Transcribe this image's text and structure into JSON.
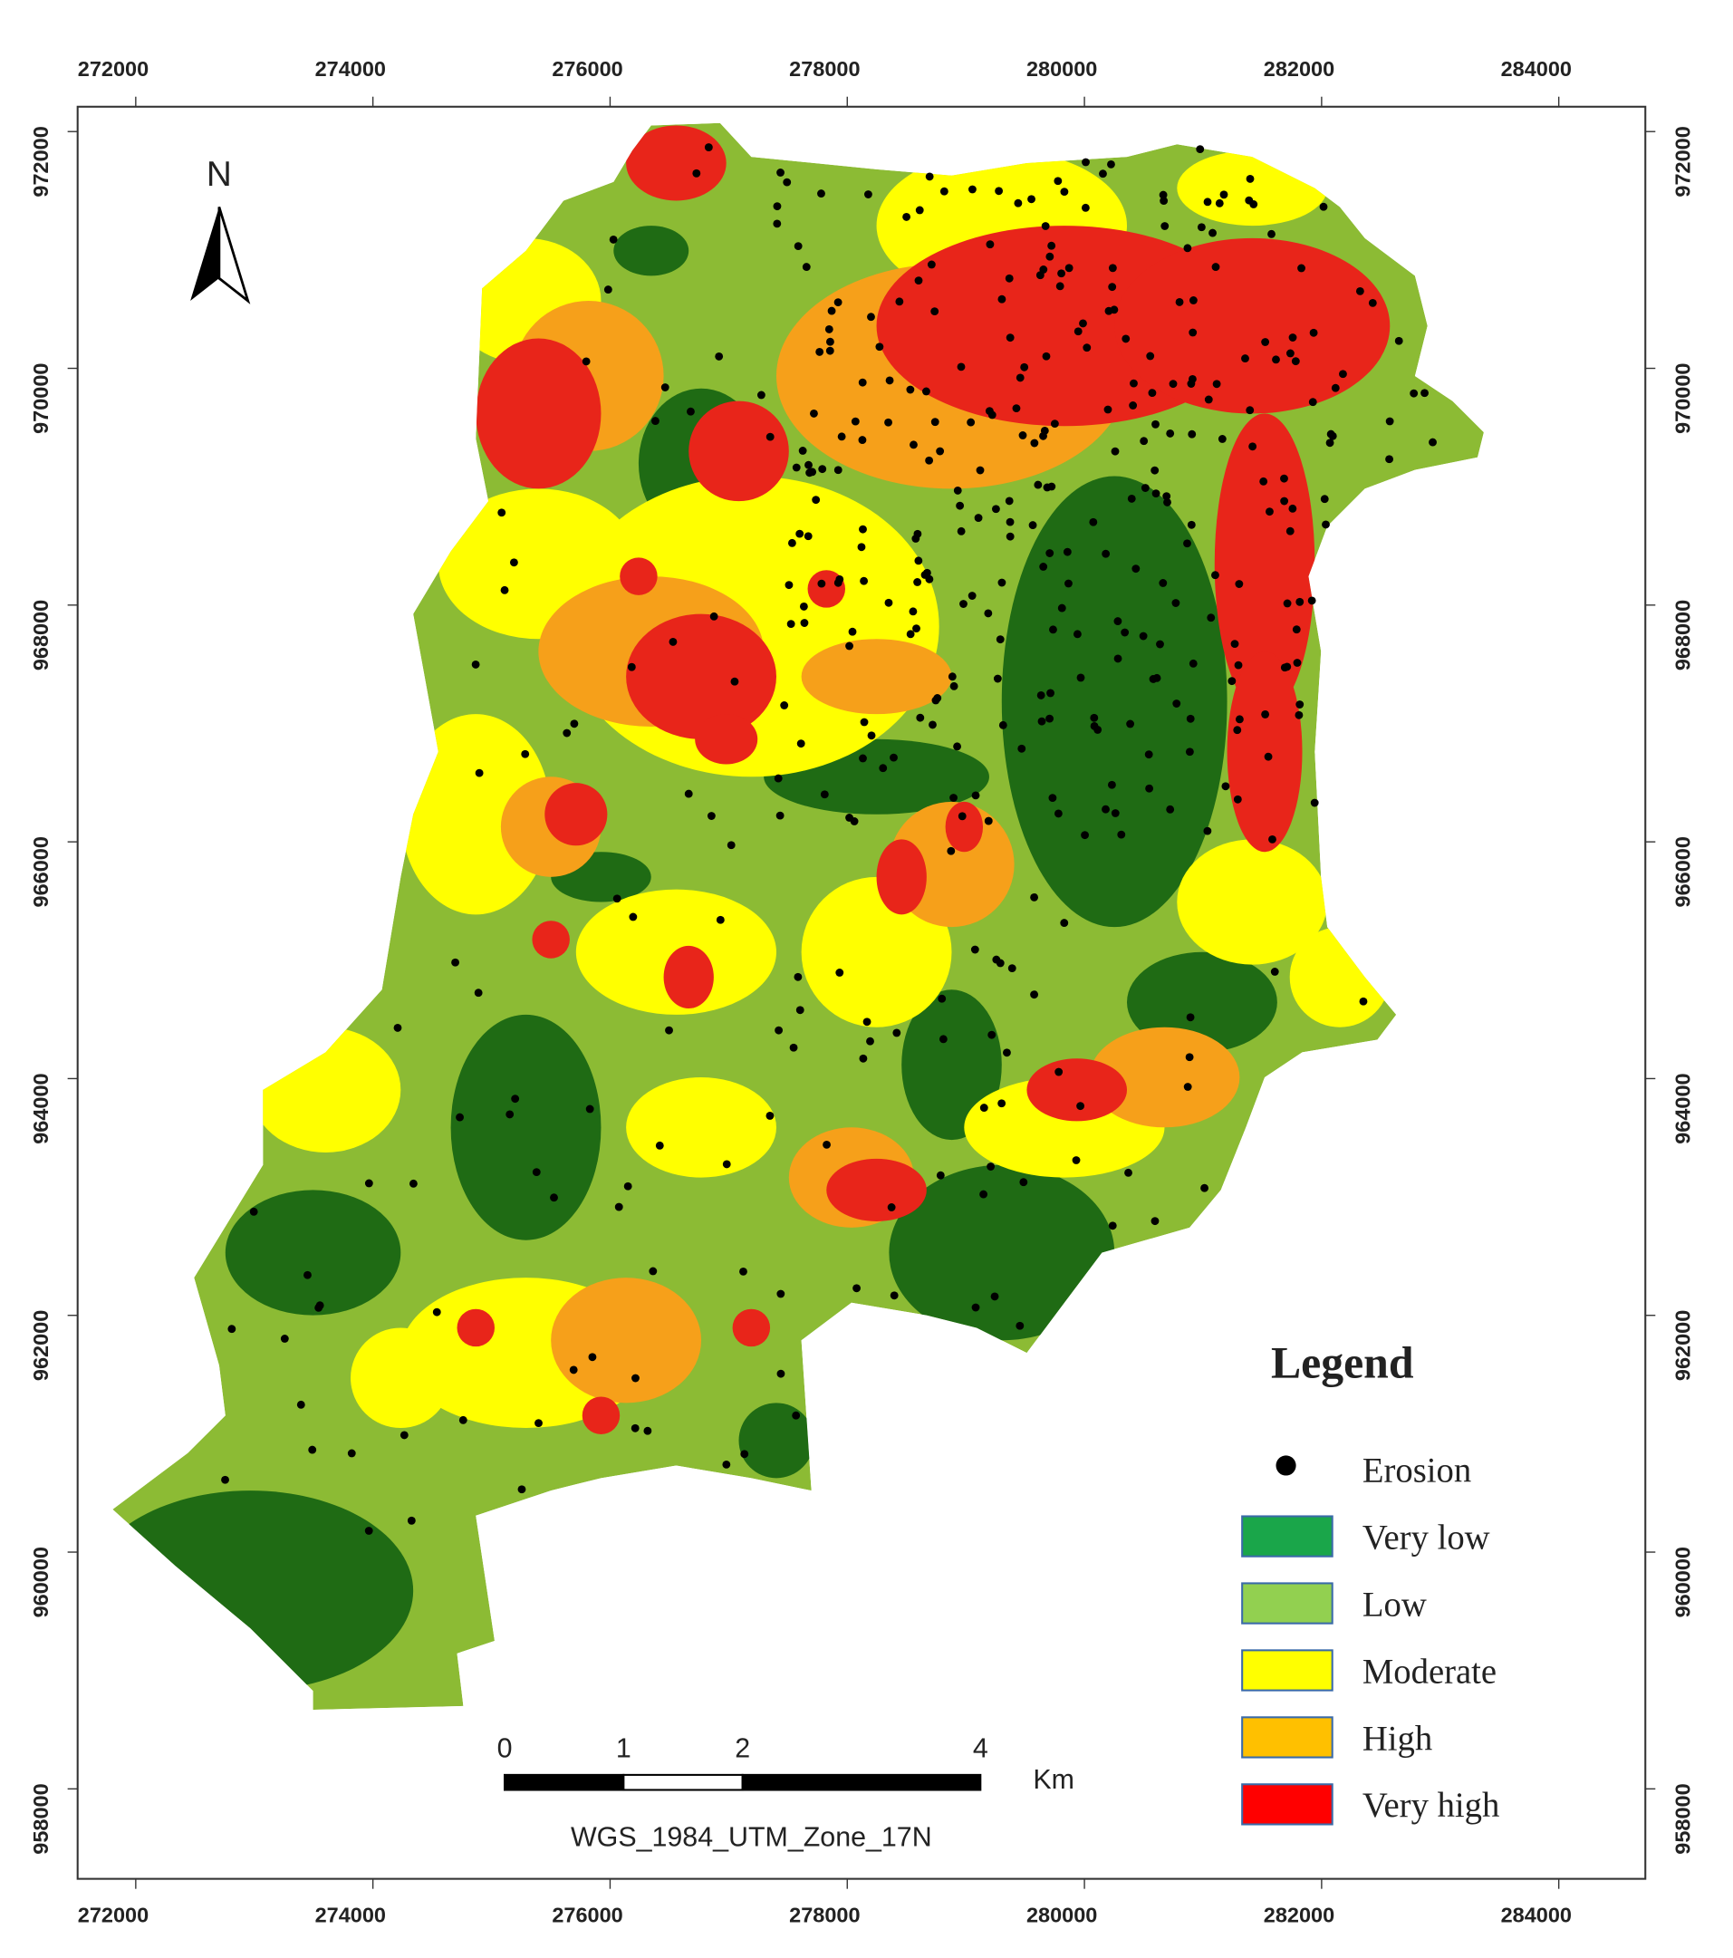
{
  "map": {
    "x_axis": {
      "lim": [
        271510,
        284730
      ],
      "ticks": [
        272000,
        274000,
        276000,
        278000,
        280000,
        282000,
        284000
      ]
    },
    "y_axis": {
      "lim": [
        957240,
        972210
      ],
      "ticks": [
        958000,
        960000,
        962000,
        964000,
        966000,
        968000,
        970000,
        972000
      ]
    },
    "north": "N",
    "legend": {
      "title": "Legend",
      "items": [
        {
          "name": "Erosion",
          "color": "#000000",
          "symbol": "dot"
        },
        {
          "name": "Very low",
          "color": "#1aa64a",
          "symbol": "box"
        },
        {
          "name": "Low",
          "color": "#92d050",
          "symbol": "box"
        },
        {
          "name": "Moderate",
          "color": "#ffff00",
          "symbol": "box"
        },
        {
          "name": "High",
          "color": "#ffc000",
          "symbol": "box"
        },
        {
          "name": "Very high",
          "color": "#ff0000",
          "symbol": "box"
        }
      ]
    },
    "scale_bar": {
      "labels": [
        0,
        1,
        2,
        4
      ],
      "unit": "Km"
    },
    "projection": "WGS_1984_UTM_Zone_17N"
  }
}
